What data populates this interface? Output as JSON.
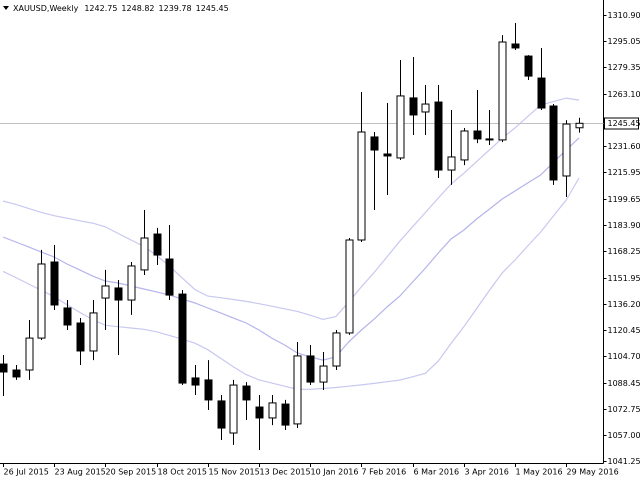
{
  "chart_data": {
    "type": "candlestick",
    "title": "XAUUSD,Weekly",
    "categories": [
      "26 Jul 2015",
      null,
      null,
      null,
      "23 Aug 2015",
      null,
      null,
      null,
      "20 Sep 2015",
      null,
      null,
      null,
      "18 Oct 2015",
      null,
      null,
      null,
      "15 Nov 2015",
      null,
      null,
      null,
      "13 Dec 2015",
      null,
      null,
      null,
      "10 Jan 2016",
      null,
      null,
      null,
      "7 Feb 2016",
      null,
      null,
      null,
      "6 Mar 2016",
      null,
      null,
      null,
      "3 Apr 2016",
      null,
      null,
      null,
      "1 May 2016",
      null,
      null,
      null,
      "29 May 2016",
      null
    ],
    "open": [
      1099.9,
      1096.3,
      1096.3,
      1115.6,
      1161.6,
      1133.8,
      1124.7,
      1107.8,
      1139.8,
      1145.9,
      1138.6,
      1156.8,
      1178.5,
      1163.4,
      1142.2,
      1091.5,
      1090.3,
      1077.6,
      1058.2,
      1086.6,
      1073.9,
      1067.3,
      1075.7,
      1063.7,
      1104.8,
      1089.0,
      1098.7,
      1118.7,
      1174.9,
      1237.2,
      1226.9,
      1224.5,
      1260.8,
      1252.3,
      1258.3,
      1217.2,
      1223.3,
      1240.8,
      1236.0,
      1235.4,
      1293.4,
      1286.1,
      1272.8,
      1255.9,
      1213.6,
      1242.75
    ],
    "high": [
      1105.4,
      1099.3,
      1126.5,
      1168.9,
      1171.9,
      1138.6,
      1127.7,
      1138.6,
      1156.8,
      1150.7,
      1161.6,
      1193.0,
      1182.2,
      1184.0,
      1144.7,
      1099.3,
      1102.3,
      1081.2,
      1090.3,
      1089.0,
      1081.2,
      1081.2,
      1078.2,
      1113.2,
      1111.4,
      1107.2,
      1120.5,
      1176.1,
      1264.4,
      1240.2,
      1257.7,
      1283.7,
      1285.5,
      1268.6,
      1268.6,
      1253.5,
      1242.6,
      1265.6,
      1253.5,
      1298.8,
      1306.1,
      1286.7,
      1291.0,
      1257.1,
      1247.4,
      1248.82
    ],
    "low": [
      1080.6,
      1090.3,
      1090.3,
      1114.4,
      1132.6,
      1120.5,
      1099.3,
      1102.3,
      1120.5,
      1105.4,
      1129.6,
      1153.7,
      1159.8,
      1138.6,
      1087.2,
      1081.2,
      1072.1,
      1054.0,
      1051.0,
      1066.1,
      1047.9,
      1063.0,
      1060.0,
      1061.2,
      1087.2,
      1084.2,
      1096.3,
      1117.5,
      1173.7,
      1193.0,
      1202.1,
      1223.3,
      1238.4,
      1238.4,
      1212.4,
      1208.2,
      1220.2,
      1233.5,
      1232.3,
      1234.1,
      1289.8,
      1271.6,
      1253.5,
      1208.2,
      1200.9,
      1239.78
    ],
    "close": [
      1095.1,
      1092.1,
      1115.6,
      1160.4,
      1135.6,
      1123.5,
      1107.8,
      1130.8,
      1147.1,
      1138.6,
      1159.2,
      1176.1,
      1165.8,
      1141.6,
      1088.4,
      1087.2,
      1078.2,
      1061.2,
      1087.2,
      1078.2,
      1067.3,
      1076.4,
      1063.0,
      1104.8,
      1089.0,
      1098.7,
      1118.7,
      1174.9,
      1240.2,
      1229.3,
      1225.7,
      1262.0,
      1250.5,
      1257.1,
      1217.2,
      1225.1,
      1240.8,
      1236.0,
      1235.4,
      1294.6,
      1291.0,
      1274.0,
      1254.7,
      1211.2,
      1245.0,
      1245.45
    ],
    "bands": [
      {
        "color": "#c8c8f0",
        "values": [
          1198.5,
          1196.4,
          1194.0,
          1191.6,
          1189.6,
          1188.1,
          1186.5,
          1185.1,
          1182.8,
          1178.8,
          1174.9,
          1171.0,
          1165.6,
          1159.1,
          1152.0,
          1144.9,
          1141.0,
          1140.0,
          1138.9,
          1137.8,
          1136.4,
          1134.9,
          1133.3,
          1131.7,
          1129.4,
          1126.9,
          1128.6,
          1137.3,
          1146.6,
          1155.3,
          1164.7,
          1174.2,
          1182.9,
          1191.5,
          1200.2,
          1208.7,
          1215.2,
          1222.3,
          1229.4,
          1236.4,
          1242.7,
          1249.6,
          1256.5,
          1258.6,
          1260.7,
          1259.5
        ]
      },
      {
        "color": "#b4b4ec",
        "values": [
          1176.7,
          1173.7,
          1170.7,
          1167.6,
          1164.6,
          1160.4,
          1156.8,
          1153.1,
          1150.1,
          1148.9,
          1147.1,
          1145.3,
          1143.5,
          1141.6,
          1139.2,
          1136.8,
          1133.8,
          1130.8,
          1127.7,
          1124.7,
          1120.5,
          1115.6,
          1111.4,
          1106.6,
          1104.2,
          1102.3,
          1104.2,
          1113.2,
          1120.5,
          1127.1,
          1134.4,
          1141.0,
          1149.5,
          1157.9,
          1167.0,
          1175.5,
          1180.9,
          1187.6,
          1193.6,
          1199.7,
          1204.5,
          1209.4,
          1214.2,
          1221.8,
          1229.3,
          1236.6
        ]
      },
      {
        "color": "#c8c8f0",
        "values": [
          1155.9,
          1152.2,
          1148.3,
          1144.4,
          1140.6,
          1135.8,
          1131.1,
          1126.8,
          1123.3,
          1122.5,
          1121.7,
          1120.9,
          1119.4,
          1117.2,
          1114.9,
          1112.5,
          1108.6,
          1103.4,
          1098.2,
          1093.5,
          1090.3,
          1088.4,
          1086.5,
          1084.6,
          1084.6,
          1085.1,
          1085.7,
          1086.5,
          1087.3,
          1088.2,
          1089.2,
          1090.2,
          1092.2,
          1094.3,
          1101.6,
          1112.3,
          1122.4,
          1133.4,
          1144.4,
          1155.0,
          1162.8,
          1171.3,
          1179.7,
          1189.4,
          1199.1,
          1212.4
        ]
      }
    ],
    "up_color": "#ffffff",
    "down_color": "#000000",
    "ylim": [
      1040.07,
      1320.0
    ],
    "yticks": [
      {
        "value": 1310.9,
        "label": "1310.90"
      },
      {
        "value": 1295.05,
        "label": "1295.05"
      },
      {
        "value": 1279.35,
        "label": "1279.35"
      },
      {
        "value": 1263.1,
        "label": "1263.10"
      },
      {
        "value": 1231.6,
        "label": "1231.60"
      },
      {
        "value": 1215.95,
        "label": "1215.95"
      },
      {
        "value": 1199.65,
        "label": "1199.65"
      },
      {
        "value": 1183.9,
        "label": "1183.90"
      },
      {
        "value": 1168.25,
        "label": "1168.25"
      },
      {
        "value": 1151.95,
        "label": "1151.95"
      },
      {
        "value": 1136.2,
        "label": "1136.20"
      },
      {
        "value": 1120.45,
        "label": "1120.45"
      },
      {
        "value": 1104.7,
        "label": "1104.70"
      },
      {
        "value": 1088.45,
        "label": "1088.45"
      },
      {
        "value": 1072.75,
        "label": "1072.75"
      },
      {
        "value": 1057.0,
        "label": "1057.00"
      },
      {
        "value": 1041.25,
        "label": "1041.25"
      }
    ]
  }
}
